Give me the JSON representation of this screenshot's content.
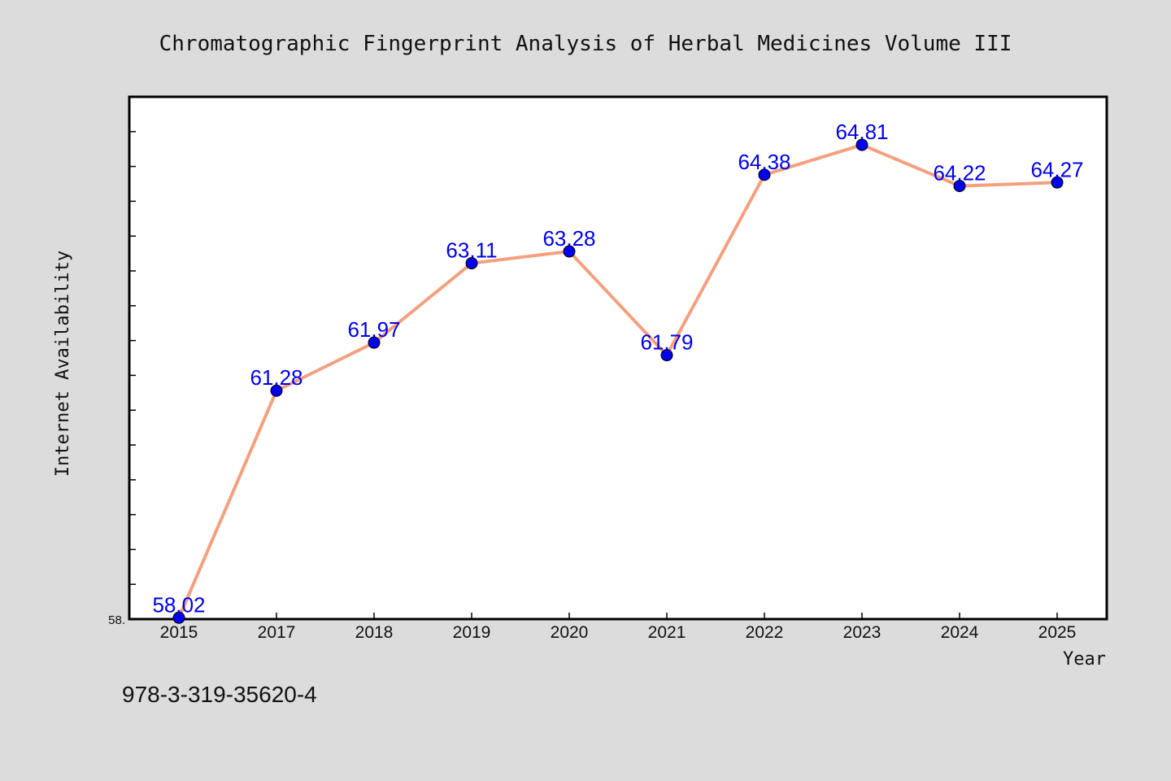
{
  "chart_data": {
    "type": "line",
    "title": "Chromatographic Fingerprint Analysis of Herbal Medicines Volume III",
    "xlabel": "Year",
    "ylabel": "Internet Availability",
    "categories": [
      "2015",
      "2017",
      "2018",
      "2019",
      "2020",
      "2021",
      "2022",
      "2023",
      "2024",
      "2025"
    ],
    "series": [
      {
        "values": [
          58.02,
          61.28,
          61.97,
          63.11,
          63.28,
          61.79,
          64.38,
          64.81,
          64.22,
          64.27
        ],
        "labels": [
          "58.02",
          "61.28",
          "61.97",
          "63.11",
          "63.28",
          "61.79",
          "64.38",
          "64.81",
          "64.22",
          "64.27"
        ]
      }
    ],
    "ylim": [
      58.0,
      65.5
    ],
    "y_tick_label": "58.",
    "grid": false,
    "line_color": "#f4a07e",
    "marker_color": "#0000ee",
    "label_color": "#0000ee"
  },
  "footer": {
    "isbn": "978-3-319-35620-4"
  }
}
